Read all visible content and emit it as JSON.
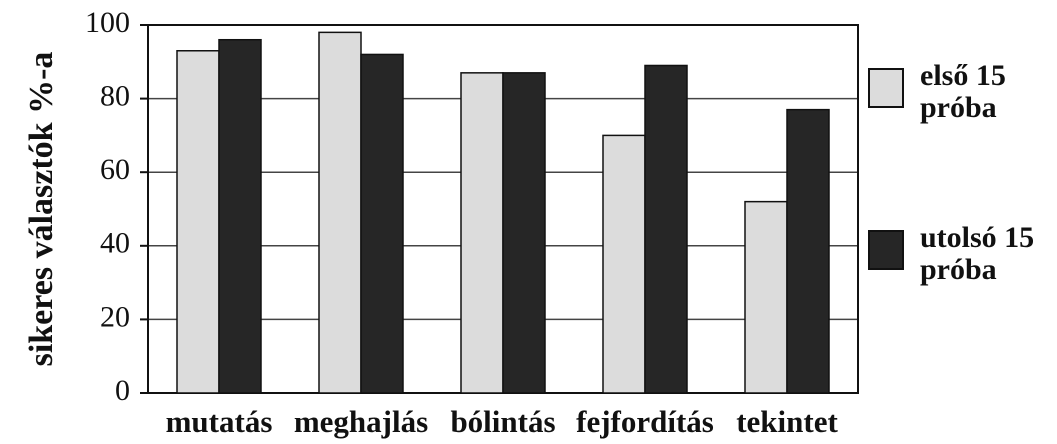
{
  "chart_data": {
    "type": "bar",
    "ylabel": "sikeres választók %-a",
    "categories": [
      "mutatás",
      "meghajlás",
      "bólintás",
      "fejfordítás",
      "tekintet"
    ],
    "series": [
      {
        "name": "első 15 próba",
        "color": "#dcdcdc",
        "values": [
          93,
          98,
          87,
          70,
          52
        ]
      },
      {
        "name": "utolsó 15 próba",
        "color": "#262626",
        "values": [
          96,
          92,
          87,
          89,
          77
        ]
      }
    ],
    "ylim": [
      0,
      100
    ],
    "yticks": [
      0,
      20,
      40,
      60,
      80,
      100
    ],
    "grid": true,
    "legend": "right"
  }
}
